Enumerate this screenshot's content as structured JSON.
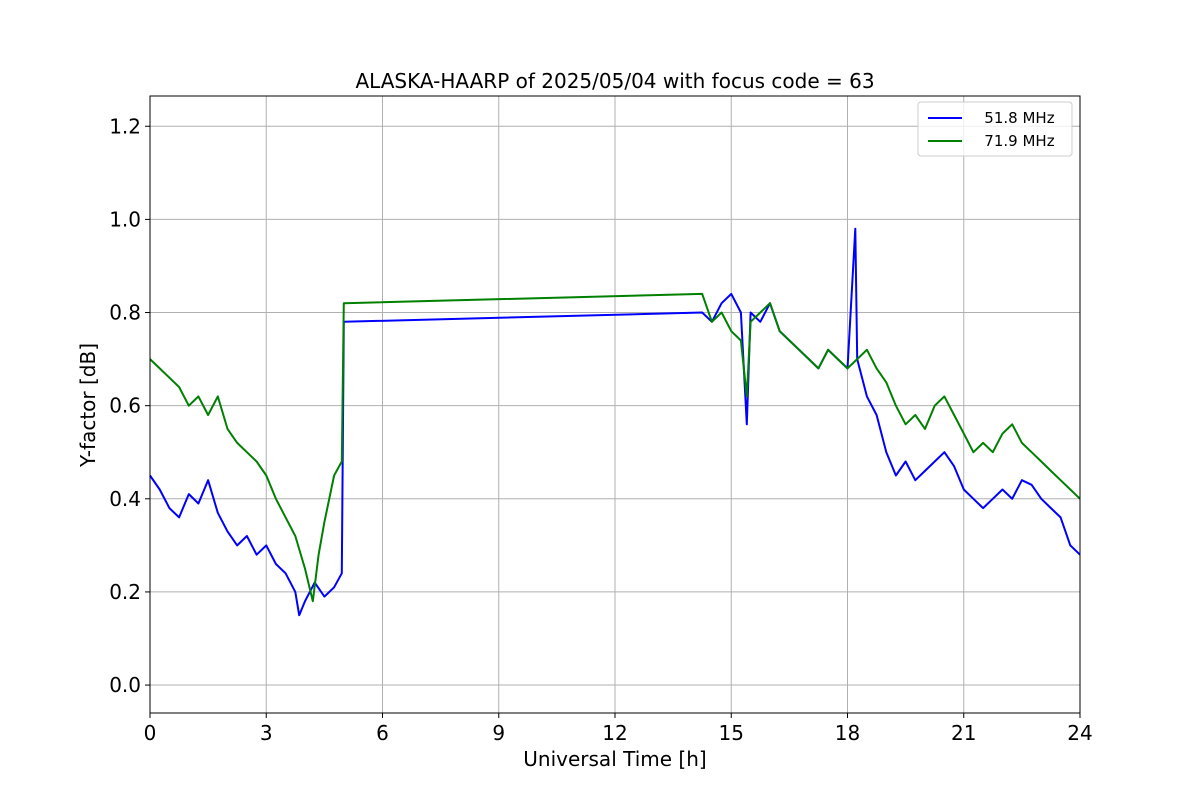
{
  "chart_data": {
    "type": "line",
    "title": "ALASKA-HAARP of 2025/05/04 with focus code = 63",
    "xlabel": "Universal Time [h]",
    "ylabel": "Y-factor [dB]",
    "xlim": [
      0,
      24
    ],
    "ylim": [
      -0.06,
      1.265
    ],
    "x_ticks": [
      0,
      3,
      6,
      9,
      12,
      15,
      18,
      21,
      24
    ],
    "y_ticks": [
      0.0,
      0.2,
      0.4,
      0.6,
      0.8,
      1.0,
      1.2
    ],
    "grid": true,
    "legend_position": "top-right",
    "series": [
      {
        "name": "   51.8 MHz",
        "color": "#0000ff",
        "x": [
          0.0,
          0.25,
          0.5,
          0.75,
          1.0,
          1.25,
          1.5,
          1.75,
          2.0,
          2.25,
          2.5,
          2.75,
          3.0,
          3.25,
          3.5,
          3.75,
          3.85,
          4.0,
          4.25,
          4.5,
          4.75,
          4.95,
          5.0,
          14.25,
          14.5,
          14.75,
          15.0,
          15.25,
          15.4,
          15.5,
          15.75,
          16.0,
          16.25,
          16.5,
          16.75,
          17.0,
          17.25,
          17.5,
          17.75,
          18.0,
          18.2,
          18.25,
          18.5,
          18.75,
          19.0,
          19.25,
          19.5,
          19.75,
          20.0,
          20.25,
          20.5,
          20.75,
          21.0,
          21.25,
          21.5,
          21.75,
          22.0,
          22.25,
          22.5,
          22.75,
          23.0,
          23.25,
          23.5,
          23.75,
          24.0
        ],
        "y": [
          0.45,
          0.42,
          0.38,
          0.36,
          0.41,
          0.39,
          0.44,
          0.37,
          0.33,
          0.3,
          0.32,
          0.28,
          0.3,
          0.26,
          0.24,
          0.2,
          0.15,
          0.18,
          0.22,
          0.19,
          0.21,
          0.24,
          0.78,
          0.8,
          0.78,
          0.82,
          0.84,
          0.8,
          0.56,
          0.8,
          0.78,
          0.82,
          0.76,
          0.74,
          0.72,
          0.7,
          0.68,
          0.72,
          0.7,
          0.68,
          0.98,
          0.7,
          0.62,
          0.58,
          0.5,
          0.45,
          0.48,
          0.44,
          0.46,
          0.48,
          0.5,
          0.47,
          0.42,
          0.4,
          0.38,
          0.4,
          0.42,
          0.4,
          0.44,
          0.43,
          0.4,
          0.38,
          0.36,
          0.3,
          0.28
        ]
      },
      {
        "name": "   71.9 MHz",
        "color": "#008000",
        "x": [
          0.0,
          0.25,
          0.5,
          0.75,
          1.0,
          1.25,
          1.5,
          1.75,
          2.0,
          2.25,
          2.5,
          2.75,
          3.0,
          3.25,
          3.5,
          3.75,
          4.0,
          4.2,
          4.35,
          4.5,
          4.75,
          4.95,
          5.0,
          14.25,
          14.5,
          14.75,
          15.0,
          15.25,
          15.4,
          15.5,
          15.75,
          16.0,
          16.25,
          16.5,
          16.75,
          17.0,
          17.25,
          17.5,
          17.75,
          18.0,
          18.25,
          18.5,
          18.75,
          19.0,
          19.25,
          19.5,
          19.75,
          20.0,
          20.25,
          20.5,
          20.75,
          21.0,
          21.25,
          21.5,
          21.75,
          22.0,
          22.25,
          22.5,
          22.75,
          23.0,
          23.25,
          23.5,
          23.75,
          24.0
        ],
        "y": [
          0.7,
          0.68,
          0.66,
          0.64,
          0.6,
          0.62,
          0.58,
          0.62,
          0.55,
          0.52,
          0.5,
          0.48,
          0.45,
          0.4,
          0.36,
          0.32,
          0.25,
          0.18,
          0.28,
          0.35,
          0.45,
          0.48,
          0.82,
          0.84,
          0.78,
          0.8,
          0.76,
          0.74,
          0.62,
          0.78,
          0.8,
          0.82,
          0.76,
          0.74,
          0.72,
          0.7,
          0.68,
          0.72,
          0.7,
          0.68,
          0.7,
          0.72,
          0.68,
          0.65,
          0.6,
          0.56,
          0.58,
          0.55,
          0.6,
          0.62,
          0.58,
          0.54,
          0.5,
          0.52,
          0.5,
          0.54,
          0.56,
          0.52,
          0.5,
          0.48,
          0.46,
          0.44,
          0.42,
          0.4
        ]
      }
    ]
  }
}
